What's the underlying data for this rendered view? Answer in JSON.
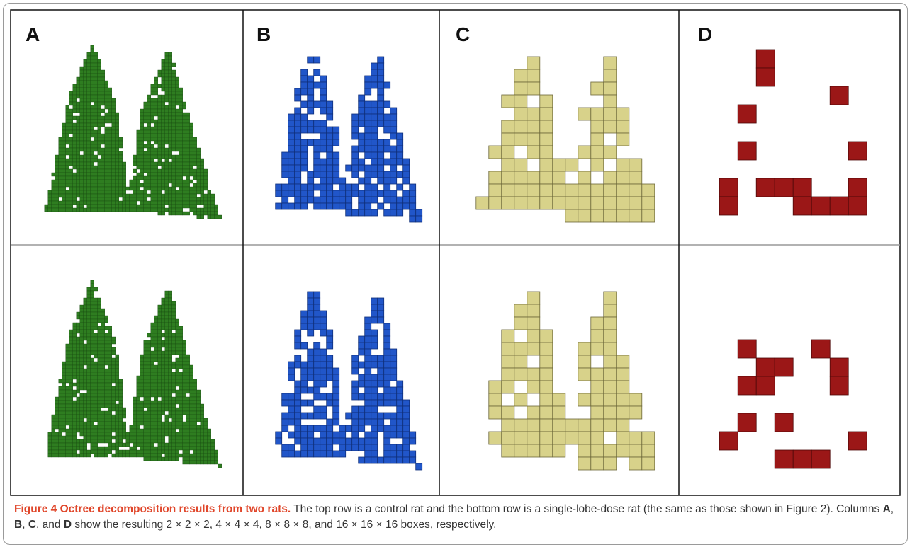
{
  "panels": [
    {
      "label": "A"
    },
    {
      "label": "B"
    },
    {
      "label": "C"
    },
    {
      "label": "D"
    }
  ],
  "caption": {
    "segments": [
      {
        "text": "Figure 4 Octree decomposition results from two rats.",
        "bold": true
      },
      {
        "text": " The top row is a control rat and the bottom row is a single-lobe-dose rat (the same as those shown in Figure 2). Columns "
      },
      {
        "text": "A",
        "bold": true
      },
      {
        "text": ", "
      },
      {
        "text": "B",
        "bold": true
      },
      {
        "text": ", "
      },
      {
        "text": "C",
        "bold": true
      },
      {
        "text": ", and "
      },
      {
        "text": "D",
        "bold": true
      },
      {
        "text": " show the resulting 2 × 2 × 2, 4 × 4 × 4, 8 × 8 × 8, and 16 × 16 × 16 boxes, respectively."
      }
    ]
  }
}
